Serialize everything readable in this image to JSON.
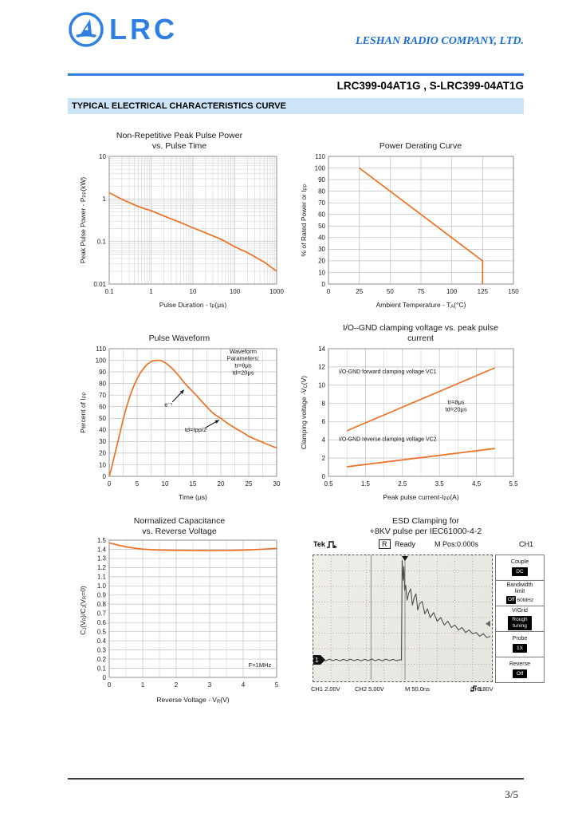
{
  "header": {
    "logo_text": "LRC",
    "company": "LESHAN RADIO COMPANY, LTD.",
    "part_numbers": "LRC399-04AT1G , S-LRC399-04AT1G",
    "section_title": "TYPICAL ELECTRICAL CHARACTERISTICS CURVE"
  },
  "footer": {
    "page": "3/5"
  },
  "colors": {
    "accent_blue": "#2f7fe3",
    "banner_bg": "#cbe5f6",
    "curve_orange": "#ee7023",
    "grid_major": "#bfbfbf",
    "grid_minor": "#d9d9d9",
    "axis_border": "#8c8c8c",
    "scope_trace": "#4d4d4d"
  },
  "chart_data": [
    {
      "type": "line",
      "title": "Non-Repetitive Peak Pulse Power\nvs. Pulse Time",
      "xlabel": [
        {
          "t": "Pulse Duration - t"
        },
        {
          "s": "P"
        },
        {
          "t": "(μs)"
        }
      ],
      "ylabel": [
        {
          "t": "Peak Pulse Power - P"
        },
        {
          "s": "PP"
        },
        {
          "t": "(kW)"
        }
      ],
      "xlog": true,
      "ylog": true,
      "xlim": [
        0.1,
        1000
      ],
      "ylim": [
        0.01,
        10
      ],
      "xticks": [
        0.1,
        1,
        10,
        100,
        1000
      ],
      "xtick_labels": [
        "0.1",
        "1",
        "10",
        "100",
        "1000"
      ],
      "yticks": [
        0.01,
        0.1,
        1,
        10
      ],
      "ytick_labels": [
        "0.01",
        "0.1",
        "1",
        "10"
      ],
      "series": [
        {
          "name": "peak-pulse-power",
          "color": "#ee7023",
          "points": [
            [
              0.1,
              1.4
            ],
            [
              0.2,
              0.98
            ],
            [
              0.5,
              0.66
            ],
            [
              1,
              0.53
            ],
            [
              2,
              0.4
            ],
            [
              5,
              0.28
            ],
            [
              10,
              0.21
            ],
            [
              20,
              0.16
            ],
            [
              50,
              0.11
            ],
            [
              100,
              0.075
            ],
            [
              200,
              0.055
            ],
            [
              500,
              0.033
            ],
            [
              1000,
              0.02
            ]
          ]
        }
      ],
      "annotations": []
    },
    {
      "type": "line",
      "title": "Power Derating Curve",
      "xlabel": [
        {
          "t": "Ambient Temperature - T"
        },
        {
          "s": "A"
        },
        {
          "t": "(°C)"
        }
      ],
      "ylabel": [
        {
          "t": "% of Rated Power or I"
        },
        {
          "s": "PP"
        }
      ],
      "xlog": false,
      "ylog": false,
      "xlim": [
        0,
        150
      ],
      "ylim": [
        0,
        110
      ],
      "xticks": [
        0,
        25,
        50,
        75,
        100,
        125,
        150
      ],
      "xtick_labels": [
        "0",
        "25",
        "50",
        "75",
        "100",
        "125",
        "150"
      ],
      "yticks": [
        0,
        10,
        20,
        30,
        40,
        50,
        60,
        70,
        80,
        90,
        100,
        110
      ],
      "ytick_labels": [
        "0",
        "10",
        "20",
        "30",
        "40",
        "50",
        "60",
        "70",
        "80",
        "90",
        "100",
        "110"
      ],
      "series": [
        {
          "name": "derating",
          "color": "#ee7023",
          "points": [
            [
              25,
              100
            ],
            [
              125,
              20
            ],
            [
              125,
              0
            ]
          ]
        }
      ],
      "annotations": []
    },
    {
      "type": "line",
      "title": "Pulse Waveform",
      "xlabel": [
        {
          "t": "Time (μs)"
        }
      ],
      "ylabel": [
        {
          "t": "Percent of  I"
        },
        {
          "s": "PP"
        }
      ],
      "xlog": false,
      "ylog": false,
      "xlim": [
        0,
        30
      ],
      "ylim": [
        0,
        110
      ],
      "xminor": 2.5,
      "xticks": [
        0,
        5,
        10,
        15,
        20,
        25,
        30
      ],
      "xtick_labels": [
        "0",
        "5",
        "10",
        "15",
        "20",
        "25",
        "30"
      ],
      "yticks": [
        0,
        10,
        20,
        30,
        40,
        50,
        60,
        70,
        80,
        90,
        100,
        110
      ],
      "ytick_labels": [
        "0",
        "10",
        "20",
        "30",
        "40",
        "50",
        "60",
        "70",
        "80",
        "90",
        "100",
        "110"
      ],
      "series": [
        {
          "name": "pulse-waveform",
          "color": "#ee7023",
          "points": [
            [
              0,
              0
            ],
            [
              0.5,
              9
            ],
            [
              1,
              19
            ],
            [
              1.5,
              29
            ],
            [
              2,
              39
            ],
            [
              2.5,
              49
            ],
            [
              3,
              58
            ],
            [
              3.5,
              66
            ],
            [
              4,
              73
            ],
            [
              4.5,
              79
            ],
            [
              5,
              84
            ],
            [
              5.5,
              88.5
            ],
            [
              6,
              92
            ],
            [
              6.5,
              95
            ],
            [
              7,
              97.3
            ],
            [
              7.5,
              98.8
            ],
            [
              8,
              99.6
            ],
            [
              8.5,
              100
            ],
            [
              9,
              100
            ],
            [
              9.5,
              99.3
            ],
            [
              10,
              98
            ],
            [
              10.5,
              96.3
            ],
            [
              11,
              94.2
            ],
            [
              11.5,
              91.8
            ],
            [
              12,
              89.2
            ],
            [
              12.5,
              86.4
            ],
            [
              13,
              83.5
            ],
            [
              13.5,
              80.5
            ],
            [
              14,
              77.8
            ],
            [
              14.5,
              75.3
            ],
            [
              15,
              73
            ],
            [
              15.5,
              70.3
            ],
            [
              16,
              67.6
            ],
            [
              16.5,
              65
            ],
            [
              17,
              62.4
            ],
            [
              17.5,
              59.8
            ],
            [
              18,
              57.3
            ],
            [
              18.5,
              54.8
            ],
            [
              19,
              53
            ],
            [
              19.5,
              51.4
            ],
            [
              20,
              50
            ],
            [
              21,
              46.4
            ],
            [
              22,
              43.2
            ],
            [
              23,
              40.3
            ],
            [
              24,
              37.6
            ],
            [
              25,
              34.4
            ],
            [
              26,
              32.3
            ],
            [
              27,
              30.3
            ],
            [
              28,
              28.2
            ],
            [
              29,
              26.3
            ],
            [
              30,
              24.5
            ]
          ]
        }
      ],
      "annotations": [
        {
          "type": "text",
          "x": 24,
          "y": 106,
          "anchor": "middle",
          "size": 7.5,
          "text": "Waveform\nParameters:\ntr=8μs\ntd=20μs"
        },
        {
          "type": "text",
          "x": 10.6,
          "y": 60,
          "anchor": "middle",
          "size": 7.5,
          "text": "e⁻ᵗ"
        },
        {
          "type": "arrow",
          "x1": 11.3,
          "y1": 64,
          "x2": 13.4,
          "y2": 74.5
        },
        {
          "type": "text",
          "x": 15.5,
          "y": 38.5,
          "anchor": "middle",
          "size": 7.5,
          "text": "td=Ipp/2"
        },
        {
          "type": "arrow",
          "x1": 17.3,
          "y1": 42,
          "x2": 19.7,
          "y2": 48.5
        }
      ]
    },
    {
      "type": "line",
      "title": "I/O–GND clamping voltage vs. peak pulse\ncurrent",
      "xlabel": [
        {
          "t": "Peak pulse current-I"
        },
        {
          "s": "PP"
        },
        {
          "t": "(A)"
        }
      ],
      "ylabel": [
        {
          "t": "Clamping voltage -V"
        },
        {
          "s": "C"
        },
        {
          "t": "(V)"
        }
      ],
      "xlog": false,
      "ylog": false,
      "xlim": [
        0.5,
        5.5
      ],
      "ylim": [
        0,
        14
      ],
      "xminor": 0.5,
      "xticks": [
        0.5,
        1.5,
        2.5,
        3.5,
        4.5,
        5.5
      ],
      "xtick_labels": [
        "0.5",
        "1.5",
        "2.5",
        "3.5",
        "4.5",
        "5.5"
      ],
      "yticks": [
        0,
        2,
        4,
        6,
        8,
        10,
        12,
        14
      ],
      "ytick_labels": [
        "0",
        "2",
        "4",
        "6",
        "8",
        "10",
        "12",
        "14"
      ],
      "series": [
        {
          "name": "forward-clamping-VC1",
          "color": "#ee7023",
          "points": [
            [
              1,
              5
            ],
            [
              5,
              11.9
            ]
          ]
        },
        {
          "name": "reverse-clamping-VC2",
          "color": "#ee7023",
          "points": [
            [
              1,
              1.05
            ],
            [
              5,
              3.05
            ]
          ]
        }
      ],
      "annotations": [
        {
          "type": "text",
          "x": 0.78,
          "y": 11.3,
          "anchor": "start",
          "size": 7,
          "text": "I/O-GND forward clamping voltage VC1"
        },
        {
          "type": "text",
          "x": 0.78,
          "y": 3.9,
          "anchor": "start",
          "size": 7,
          "text": "I/O-GND reverse clamping voltage VC2"
        },
        {
          "type": "text",
          "x": 3.95,
          "y": 7.9,
          "anchor": "middle",
          "size": 7.5,
          "text": "tr=8μs\ntd=20μs"
        }
      ]
    },
    {
      "type": "line",
      "title": "Normalized Capacitance\nvs. Reverse Voltage",
      "xlabel": [
        {
          "t": "Reverse Voltage - V"
        },
        {
          "s": "R"
        },
        {
          "t": "(V)"
        }
      ],
      "ylabel": [
        {
          "t": "C"
        },
        {
          "s": "J"
        },
        {
          "t": "(V"
        },
        {
          "s": "R"
        },
        {
          "t": ")/C"
        },
        {
          "s": "J"
        },
        {
          "t": "(V"
        },
        {
          "s": "R"
        },
        {
          "t": "=0)"
        }
      ],
      "xlog": false,
      "ylog": false,
      "xlim": [
        0,
        5
      ],
      "ylim": [
        0,
        1.5
      ],
      "xminor": 0.5,
      "xticks": [
        0,
        1,
        2,
        3,
        4,
        5
      ],
      "xtick_labels": [
        "0",
        "1",
        "2",
        "3",
        "4",
        "5"
      ],
      "yticks": [
        0,
        0.1,
        0.2,
        0.3,
        0.4,
        0.5,
        0.6,
        0.7,
        0.8,
        0.9,
        1.0,
        1.1,
        1.2,
        1.3,
        1.4,
        1.5
      ],
      "ytick_labels": [
        "0",
        "0.1",
        "0.2",
        "0.3",
        "0.4",
        "0.5",
        "0.6",
        "0.7",
        "0.8",
        "0.9",
        "1.0",
        "1.1",
        "1.2",
        "1.3",
        "1.4",
        "1.5"
      ],
      "series": [
        {
          "name": "normalized-capacitance",
          "color": "#ee7023",
          "points": [
            [
              0,
              1.47
            ],
            [
              0.25,
              1.447
            ],
            [
              0.5,
              1.428
            ],
            [
              0.75,
              1.413
            ],
            [
              1,
              1.402
            ],
            [
              1.25,
              1.396
            ],
            [
              1.5,
              1.392
            ],
            [
              2,
              1.389
            ],
            [
              2.5,
              1.387
            ],
            [
              3,
              1.386
            ],
            [
              3.25,
              1.386
            ],
            [
              3.5,
              1.387
            ],
            [
              4,
              1.391
            ],
            [
              4.5,
              1.399
            ],
            [
              5,
              1.41
            ]
          ]
        }
      ],
      "annotations": [
        {
          "type": "text",
          "x": 4.5,
          "y": 0.115,
          "anchor": "middle",
          "size": 7.5,
          "text": "F=1MHz"
        }
      ]
    },
    {
      "type": "scope",
      "title": "ESD Clamping for\n+8KV pulse per IEC61000-4-2",
      "header": {
        "brand": "Tek",
        "status_key": "R",
        "status": "Ready",
        "m_pos": "M Pos:0.000s",
        "channel": "CH1"
      },
      "menu": [
        {
          "label": "Couple",
          "badge": "DC"
        },
        {
          "label": "Bandwidth\nlimit",
          "badge": "Off",
          "suffix": "60MHz"
        },
        {
          "label": "V/Grid",
          "badge": "Rough\ntuning"
        },
        {
          "label": "Probe",
          "badge": "1X"
        },
        {
          "label": "Reverse",
          "badge": "Off"
        }
      ],
      "readouts": {
        "ch1": "CH1 2.00V",
        "ch2": "CH2 5.00V",
        "time": "M  50.0ns",
        "trig_ch": "CH1",
        "trig_val": "3.80V"
      },
      "channel_marker": "1",
      "grid": {
        "cols": 10,
        "rows": 8,
        "solid_x": [
          32.6,
          51.8
        ]
      },
      "trace": [
        [
          0,
          84
        ],
        [
          2,
          83.2
        ],
        [
          3,
          84.5
        ],
        [
          5,
          83.5
        ],
        [
          7,
          84.8
        ],
        [
          9,
          83.4
        ],
        [
          11,
          84.6
        ],
        [
          13,
          83.6
        ],
        [
          15,
          84.8
        ],
        [
          17,
          83.5
        ],
        [
          19,
          84.6
        ],
        [
          21,
          83.4
        ],
        [
          23,
          84.7
        ],
        [
          25,
          83.6
        ],
        [
          27,
          84.8
        ],
        [
          29,
          83.5
        ],
        [
          31,
          84.6
        ],
        [
          33,
          83.3
        ],
        [
          35,
          84.7
        ],
        [
          37,
          83.6
        ],
        [
          39,
          84.8
        ],
        [
          41,
          83.4
        ],
        [
          43,
          84.6
        ],
        [
          45,
          83.6
        ],
        [
          47,
          84.7
        ],
        [
          48.5,
          84
        ],
        [
          49.8,
          84
        ],
        [
          50.2,
          4
        ],
        [
          50.8,
          20
        ],
        [
          51.2,
          9
        ],
        [
          51.6,
          28
        ],
        [
          52.2,
          24
        ],
        [
          53,
          36
        ],
        [
          54,
          30
        ],
        [
          55,
          27
        ],
        [
          56,
          40
        ],
        [
          57,
          34
        ],
        [
          58,
          31
        ],
        [
          59,
          44
        ],
        [
          60,
          39
        ],
        [
          61.5,
          37
        ],
        [
          63,
          47
        ],
        [
          64.5,
          43
        ],
        [
          66,
          50
        ],
        [
          68,
          46
        ],
        [
          70,
          53
        ],
        [
          72,
          50
        ],
        [
          74,
          56
        ],
        [
          76,
          53
        ],
        [
          78,
          58
        ],
        [
          80,
          56
        ],
        [
          82,
          60
        ],
        [
          84,
          58
        ],
        [
          86,
          62
        ],
        [
          88,
          60
        ],
        [
          90,
          63
        ],
        [
          92,
          62
        ],
        [
          94,
          65
        ],
        [
          96,
          63
        ],
        [
          98,
          66
        ],
        [
          100,
          65
        ]
      ]
    }
  ]
}
